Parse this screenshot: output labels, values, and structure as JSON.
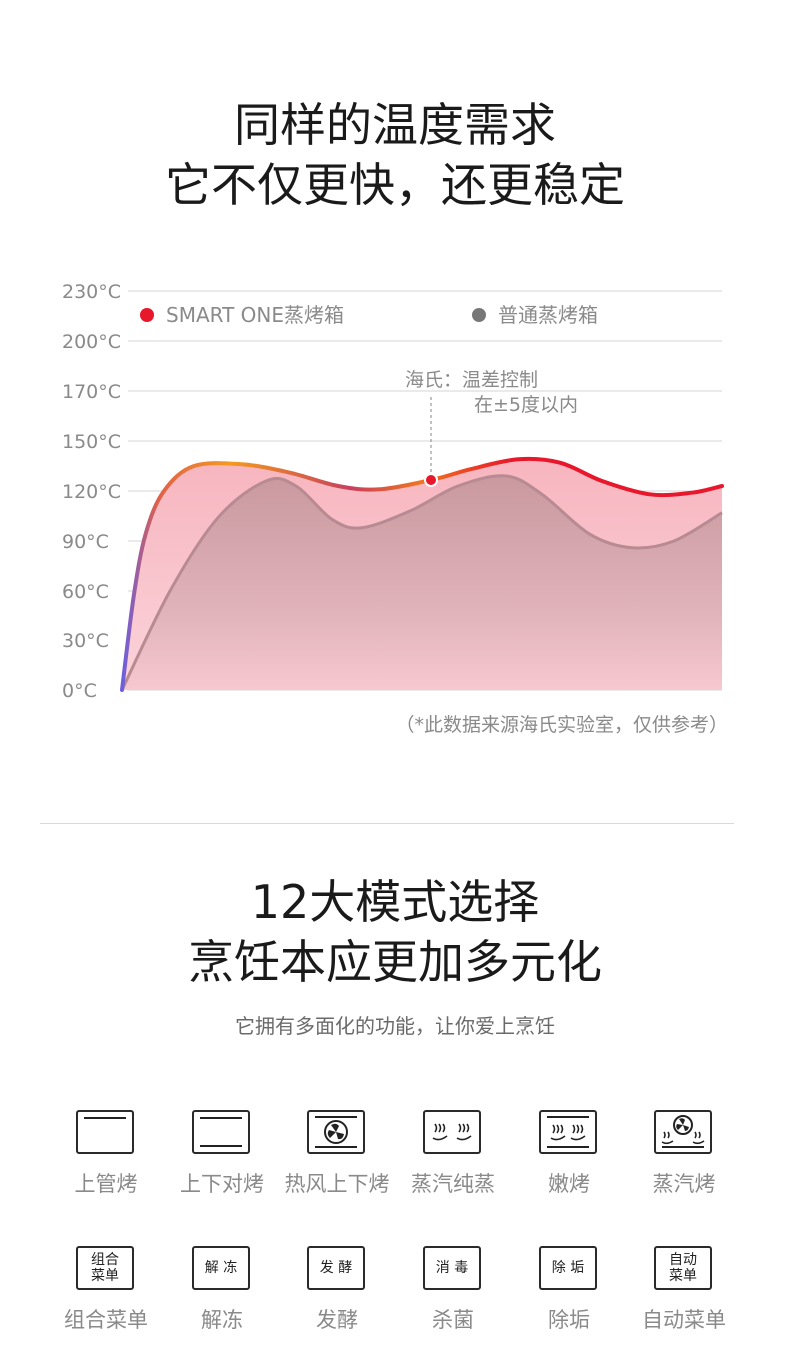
{
  "section1": {
    "title_line1": "同样的温度需求",
    "title_line2": "它不仅更快，还更稳定"
  },
  "chart_data": {
    "type": "area",
    "y_ticks": [
      "230°C",
      "200°C",
      "170°C",
      "150°C",
      "120°C",
      "90°C",
      "60°C",
      "30°C",
      "0°C"
    ],
    "legend": [
      "SMART ONE蒸烤箱",
      "普通蒸烤箱"
    ],
    "grid": true,
    "legend_placement": "top",
    "series": [
      {
        "name": "SMART ONE蒸烤箱",
        "color": "#e8172c",
        "points": [
          [
            0,
            0
          ],
          [
            2,
            58
          ],
          [
            4,
            95
          ],
          [
            7,
            120
          ],
          [
            12,
            135
          ],
          [
            20,
            136
          ],
          [
            28,
            131
          ],
          [
            36,
            123
          ],
          [
            43,
            121
          ],
          [
            52,
            127
          ],
          [
            58,
            133
          ],
          [
            66,
            139
          ],
          [
            73,
            137
          ],
          [
            80,
            126
          ],
          [
            88,
            118
          ],
          [
            95,
            119
          ],
          [
            100,
            123
          ]
        ]
      },
      {
        "name": "普通蒸烤箱",
        "color": "#8c8c8c",
        "points": [
          [
            0,
            0
          ],
          [
            8,
            60
          ],
          [
            16,
            104
          ],
          [
            24,
            126
          ],
          [
            29,
            123
          ],
          [
            35,
            103
          ],
          [
            40,
            98
          ],
          [
            48,
            108
          ],
          [
            56,
            123
          ],
          [
            64,
            129
          ],
          [
            70,
            118
          ],
          [
            78,
            94
          ],
          [
            85,
            86
          ],
          [
            92,
            90
          ],
          [
            100,
            107
          ]
        ]
      }
    ],
    "annotation": {
      "line1": "海氏：温差控制",
      "line2": "在±5度以内"
    },
    "source_note": "（*此数据来源海氏实验室，仅供参考）"
  },
  "section2": {
    "title_line1": "12大模式选择",
    "title_line2": "烹饪本应更加多元化",
    "subtitle": "它拥有多面化的功能，让你爱上烹饪"
  },
  "modes": [
    {
      "label": "上管烤",
      "icon": "top-heat-icon"
    },
    {
      "label": "上下对烤",
      "icon": "top-bottom-heat-icon"
    },
    {
      "label": "热风上下烤",
      "icon": "fan-heat-icon"
    },
    {
      "label": "蒸汽纯蒸",
      "icon": "pure-steam-icon"
    },
    {
      "label": "嫩烤",
      "icon": "tender-roast-icon"
    },
    {
      "label": "蒸汽烤",
      "icon": "steam-roast-icon"
    },
    {
      "label": "组合菜单",
      "icon": "combo-menu-icon",
      "icon_text": [
        "组合",
        "菜单"
      ]
    },
    {
      "label": "解冻",
      "icon": "defrost-icon",
      "icon_text": [
        "解 冻"
      ]
    },
    {
      "label": "发酵",
      "icon": "ferment-icon",
      "icon_text": [
        "发 酵"
      ]
    },
    {
      "label": "杀菌",
      "icon": "sterilize-icon",
      "icon_text": [
        "消 毒"
      ]
    },
    {
      "label": "除垢",
      "icon": "descale-icon",
      "icon_text": [
        "除 垢"
      ]
    },
    {
      "label": "自动菜单",
      "icon": "auto-menu-icon",
      "icon_text": [
        "自动",
        "菜单"
      ]
    }
  ]
}
